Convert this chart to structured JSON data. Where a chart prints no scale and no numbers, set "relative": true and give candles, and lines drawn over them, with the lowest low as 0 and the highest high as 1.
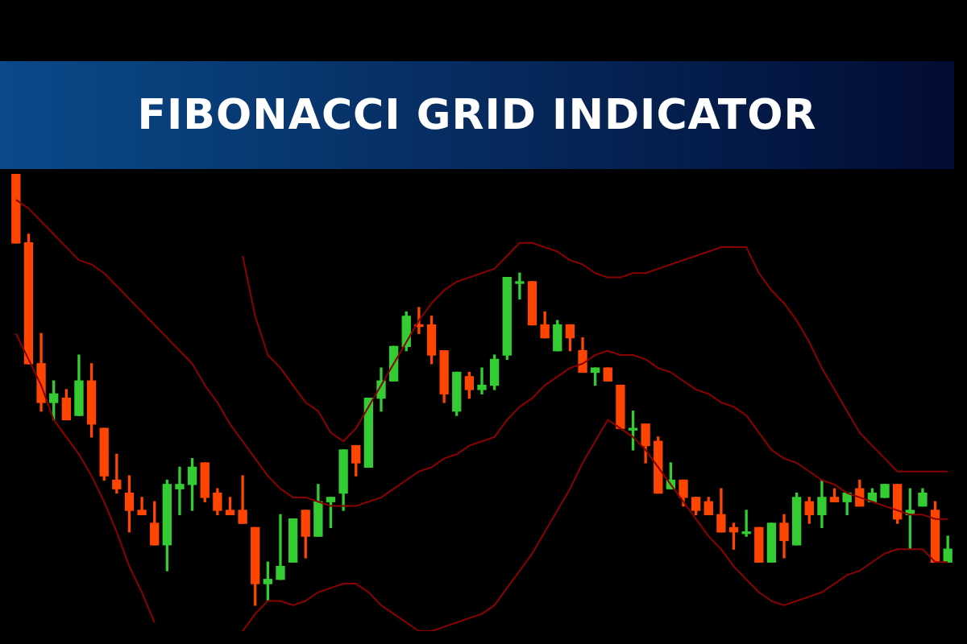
{
  "chart_data": {
    "type": "candlestick",
    "title": "FIBONACCI GRID INDICATOR",
    "relative": true,
    "legend": false,
    "categories": [
      null,
      null,
      null,
      null,
      null,
      null,
      null,
      null,
      null,
      null,
      null,
      null,
      null,
      null,
      null,
      null,
      null,
      null,
      null,
      null,
      null,
      null,
      null,
      null,
      null,
      null,
      null,
      null,
      null,
      null,
      null,
      null,
      null,
      null,
      null,
      null,
      null,
      null,
      null,
      null,
      null,
      null,
      null,
      null,
      null,
      null,
      null,
      null,
      null,
      null,
      null,
      null,
      null,
      null,
      null,
      null,
      null,
      null,
      null,
      null,
      null,
      null,
      null,
      null,
      null,
      null,
      null,
      null,
      null,
      null,
      null,
      null,
      null,
      null,
      null
    ],
    "ohlc": [
      [
        1.0,
        1.0,
        0.84,
        0.84
      ],
      [
        0.84,
        0.86,
        0.56,
        0.56
      ],
      [
        0.56,
        0.63,
        0.45,
        0.47
      ],
      [
        0.47,
        0.52,
        0.43,
        0.49
      ],
      [
        0.48,
        0.5,
        0.43,
        0.43
      ],
      [
        0.44,
        0.58,
        0.44,
        0.52
      ],
      [
        0.52,
        0.56,
        0.39,
        0.42
      ],
      [
        0.41,
        0.41,
        0.29,
        0.3
      ],
      [
        0.29,
        0.35,
        0.26,
        0.27
      ],
      [
        0.26,
        0.3,
        0.17,
        0.22
      ],
      [
        0.22,
        0.25,
        0.21,
        0.21
      ],
      [
        0.19,
        0.24,
        0.14,
        0.14
      ],
      [
        0.14,
        0.29,
        0.08,
        0.28
      ],
      [
        0.27,
        0.32,
        0.21,
        0.28
      ],
      [
        0.28,
        0.34,
        0.22,
        0.32
      ],
      [
        0.33,
        0.33,
        0.24,
        0.25
      ],
      [
        0.26,
        0.27,
        0.21,
        0.22
      ],
      [
        0.22,
        0.25,
        0.21,
        0.21
      ],
      [
        0.22,
        0.3,
        0.19,
        0.19
      ],
      [
        0.18,
        0.18,
        0,
        0.05
      ],
      [
        0.05,
        0.1,
        0.01,
        0.06
      ],
      [
        0.06,
        0.21,
        0.06,
        0.09
      ],
      [
        0.1,
        0.2,
        0.1,
        0.2
      ],
      [
        0.22,
        0.22,
        0.11,
        0.16
      ],
      [
        0.16,
        0.28,
        0.16,
        0.24
      ],
      [
        0.24,
        0.25,
        0.18,
        0.25
      ],
      [
        0.26,
        0.36,
        0.22,
        0.36
      ],
      [
        0.37,
        0.37,
        0.3,
        0.33
      ],
      [
        0.32,
        0.48,
        0.32,
        0.48
      ],
      [
        0.48,
        0.55,
        0.45,
        0.52
      ],
      [
        0.52,
        0.6,
        0.52,
        0.6
      ],
      [
        0.6,
        0.68,
        0.59,
        0.67
      ],
      [
        0.65,
        0.69,
        0.63,
        0.65
      ],
      [
        0.65,
        0.67,
        0.56,
        0.58
      ],
      [
        0.59,
        0.59,
        0.47,
        0.49
      ],
      [
        0.45,
        0.54,
        0.44,
        0.54
      ],
      [
        0.53,
        0.54,
        0.48,
        0.5
      ],
      [
        0.5,
        0.55,
        0.49,
        0.51
      ],
      [
        0.51,
        0.58,
        0.5,
        0.57
      ],
      [
        0.58,
        0.76,
        0.57,
        0.76
      ],
      [
        0.75,
        0.77,
        0.71,
        0.75
      ],
      [
        0.75,
        0.75,
        0.65,
        0.65
      ],
      [
        0.65,
        0.68,
        0.62,
        0.62
      ],
      [
        0.59,
        0.66,
        0.59,
        0.65
      ],
      [
        0.65,
        0.65,
        0.59,
        0.62
      ],
      [
        0.59,
        0.62,
        0.54,
        0.54
      ],
      [
        0.54,
        0.55,
        0.51,
        0.55
      ],
      [
        0.55,
        0.55,
        0.52,
        0.52
      ],
      [
        0.51,
        0.51,
        0.41,
        0.41
      ],
      [
        0.41,
        0.45,
        0.36,
        0.41
      ],
      [
        0.42,
        0.42,
        0.33,
        0.37
      ],
      [
        0.38,
        0.39,
        0.26,
        0.26
      ],
      [
        0.27,
        0.33,
        0.27,
        0.29
      ],
      [
        0.29,
        0.29,
        0.23,
        0.25
      ],
      [
        0.25,
        0.25,
        0.21,
        0.22
      ],
      [
        0.24,
        0.25,
        0.21,
        0.21
      ],
      [
        0.21,
        0.27,
        0.17,
        0.17
      ],
      [
        0.18,
        0.19,
        0.13,
        0.17
      ],
      [
        0.17,
        0.22,
        0.16,
        0.17
      ],
      [
        0.18,
        0.18,
        0.1,
        0.1
      ],
      [
        0.1,
        0.19,
        0.1,
        0.19
      ],
      [
        0.19,
        0.21,
        0.11,
        0.15
      ],
      [
        0.14,
        0.26,
        0.14,
        0.25
      ],
      [
        0.24,
        0.25,
        0.19,
        0.21
      ],
      [
        0.21,
        0.29,
        0.18,
        0.25
      ],
      [
        0.25,
        0.27,
        0.24,
        0.24
      ],
      [
        0.24,
        0.26,
        0.21,
        0.26
      ],
      [
        0.27,
        0.29,
        0.23,
        0.23
      ],
      [
        0.24,
        0.27,
        0.24,
        0.26
      ],
      [
        0.25,
        0.28,
        0.25,
        0.28
      ],
      [
        0.28,
        0.28,
        0.19,
        0.2
      ],
      [
        0.21,
        0.27,
        0.13,
        0.22
      ],
      [
        0.23,
        0.27,
        0.23,
        0.26
      ],
      [
        0.22,
        0.24,
        0.1,
        0.1
      ],
      [
        0.1,
        0.16,
        0.1,
        0.13
      ]
    ],
    "colors": [
      "#ff4500",
      "#ff4500",
      "#ff4500",
      "#33cc33",
      "#ff4500",
      "#33cc33",
      "#ff4500",
      "#ff4500",
      "#ff4500",
      "#ff4500",
      "#ff4500",
      "#ff4500",
      "#33cc33",
      "#33cc33",
      "#33cc33",
      "#ff4500",
      "#ff4500",
      "#ff4500",
      "#ff4500",
      "#ff4500",
      "#33cc33",
      "#33cc33",
      "#33cc33",
      "#ff4500",
      "#33cc33",
      "#33cc33",
      "#33cc33",
      "#ff4500",
      "#33cc33",
      "#33cc33",
      "#33cc33",
      "#33cc33",
      "#ff4500",
      "#ff4500",
      "#ff4500",
      "#33cc33",
      "#ff4500",
      "#33cc33",
      "#33cc33",
      "#33cc33",
      "#33cc33",
      "#ff4500",
      "#ff4500",
      "#33cc33",
      "#ff4500",
      "#ff4500",
      "#33cc33",
      "#ff4500",
      "#ff4500",
      "#33cc33",
      "#ff4500",
      "#ff4500",
      "#33cc33",
      "#ff4500",
      "#ff4500",
      "#ff4500",
      "#ff4500",
      "#ff4500",
      "#33cc33",
      "#ff4500",
      "#33cc33",
      "#ff4500",
      "#33cc33",
      "#ff4500",
      "#33cc33",
      "#ff4500",
      "#33cc33",
      "#ff4500",
      "#33cc33",
      "#33cc33",
      "#ff4500",
      "#33cc33",
      "#33cc33",
      "#ff4500",
      "#33cc33"
    ],
    "series": [
      {
        "type": "line",
        "color": "#8b0000",
        "values": [
          null,
          null,
          null,
          null,
          null,
          null,
          null,
          null,
          null,
          null,
          null,
          null,
          null,
          null,
          null,
          null,
          null,
          null,
          0.81,
          0.67,
          0.58,
          0.55,
          0.51,
          0.47,
          0.45,
          0.4,
          0.38,
          0.41,
          0.46,
          0.51,
          0.56,
          0.61,
          0.66,
          0.7,
          0.73,
          0.75,
          0.76,
          0.77,
          0.78,
          0.81,
          0.84,
          0.84,
          0.83,
          0.82,
          0.8,
          0.79,
          0.77,
          0.76,
          0.76,
          0.77,
          0.77,
          0.78,
          0.79,
          0.8,
          0.81,
          0.82,
          0.83,
          0.83,
          0.83,
          0.77,
          0.73,
          0.7,
          0.66,
          0.61,
          0.55,
          0.5,
          0.45,
          0.4,
          0.37,
          0.34,
          0.31,
          0.31,
          0.31,
          0.31,
          0.31
        ]
      },
      {
        "type": "line",
        "color": "#8b0000",
        "values": [
          0.94,
          0.92,
          0.89,
          0.86,
          0.83,
          0.8,
          0.79,
          0.77,
          0.74,
          0.71,
          0.68,
          0.65,
          0.62,
          0.59,
          0.56,
          0.51,
          0.47,
          0.42,
          0.38,
          0.34,
          0.3,
          0.27,
          0.25,
          0.25,
          0.24,
          0.23,
          0.23,
          0.23,
          0.24,
          0.25,
          0.27,
          0.29,
          0.31,
          0.32,
          0.34,
          0.35,
          0.37,
          0.38,
          0.39,
          0.43,
          0.46,
          0.48,
          0.51,
          0.53,
          0.55,
          0.56,
          0.58,
          0.59,
          0.58,
          0.58,
          0.57,
          0.55,
          0.54,
          0.52,
          0.5,
          0.49,
          0.47,
          0.46,
          0.44,
          0.4,
          0.36,
          0.34,
          0.33,
          0.31,
          0.29,
          0.28,
          0.26,
          0.25,
          0.24,
          0.23,
          0.22,
          0.21,
          0.21,
          0.2,
          0.2
        ]
      },
      {
        "type": "line",
        "color": "#8b0000",
        "values": [
          0.63,
          0.57,
          0.51,
          0.43,
          0.39,
          0.35,
          0.3,
          0.24,
          0.17,
          0.09,
          0.03,
          -0.04,
          null,
          null,
          null,
          null,
          null,
          null,
          -0.06,
          -0.02,
          0.01,
          0.01,
          0.0,
          0.01,
          0.03,
          0.04,
          0.05,
          0.05,
          0.03,
          0.0,
          -0.02,
          -0.04,
          -0.06,
          -0.06,
          -0.05,
          -0.04,
          -0.03,
          -0.02,
          0.0,
          0.04,
          0.08,
          0.12,
          0.17,
          0.22,
          0.27,
          0.33,
          0.38,
          0.43,
          0.41,
          0.39,
          0.36,
          0.32,
          0.28,
          0.24,
          0.2,
          0.16,
          0.13,
          0.09,
          0.06,
          0.03,
          0.01,
          0.0,
          0.01,
          0.02,
          0.03,
          0.05,
          0.07,
          0.08,
          0.1,
          0.12,
          0.13,
          0.13,
          0.13,
          0.1,
          0.1
        ]
      }
    ]
  }
}
